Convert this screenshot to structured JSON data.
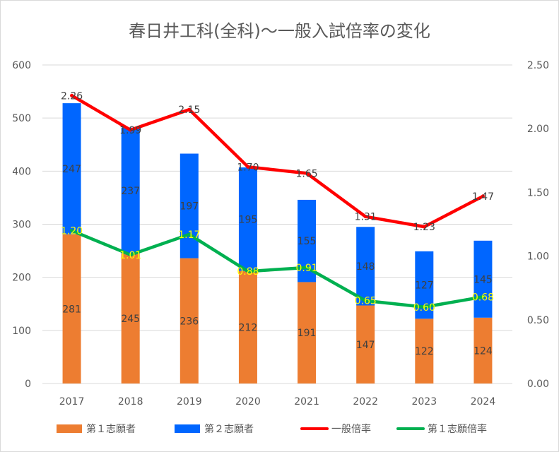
{
  "chart_data": {
    "type": "bar",
    "title": "春日井工科(全科)～一般入試倍率の変化",
    "categories": [
      "2017",
      "2018",
      "2019",
      "2020",
      "2021",
      "2022",
      "2023",
      "2024"
    ],
    "stacked": true,
    "series": [
      {
        "name": "第１志願者",
        "kind": "bar",
        "axis": "left",
        "color": "#ed7d31",
        "values": [
          281,
          245,
          236,
          212,
          191,
          147,
          122,
          124
        ]
      },
      {
        "name": "第２志願者",
        "kind": "bar",
        "axis": "left",
        "color": "#0066ff",
        "values": [
          247,
          237,
          197,
          195,
          155,
          148,
          127,
          145
        ]
      },
      {
        "name": "一般倍率",
        "kind": "line",
        "axis": "right",
        "color": "#ff0000",
        "values": [
          "2.26",
          "1.99",
          "2.15",
          "1.70",
          "1.65",
          "1.31",
          "1.23",
          "1.47"
        ]
      },
      {
        "name": "第１志願倍率",
        "kind": "line",
        "axis": "right",
        "color": "#00b050",
        "label_color": "#ffff00",
        "values": [
          "1.20",
          "1.01",
          "1.17",
          "0.88",
          "0.91",
          "0.65",
          "0.60",
          "0.68"
        ]
      }
    ],
    "y_left": {
      "min": 0,
      "max": 600,
      "ticks": [
        "0",
        "100",
        "200",
        "300",
        "400",
        "500",
        "600"
      ]
    },
    "y_right": {
      "min": 0,
      "max": 2.5,
      "ticks": [
        "0.00",
        "0.50",
        "1.00",
        "1.50",
        "2.00",
        "2.50"
      ]
    },
    "grid": true,
    "legend_position": "bottom"
  }
}
